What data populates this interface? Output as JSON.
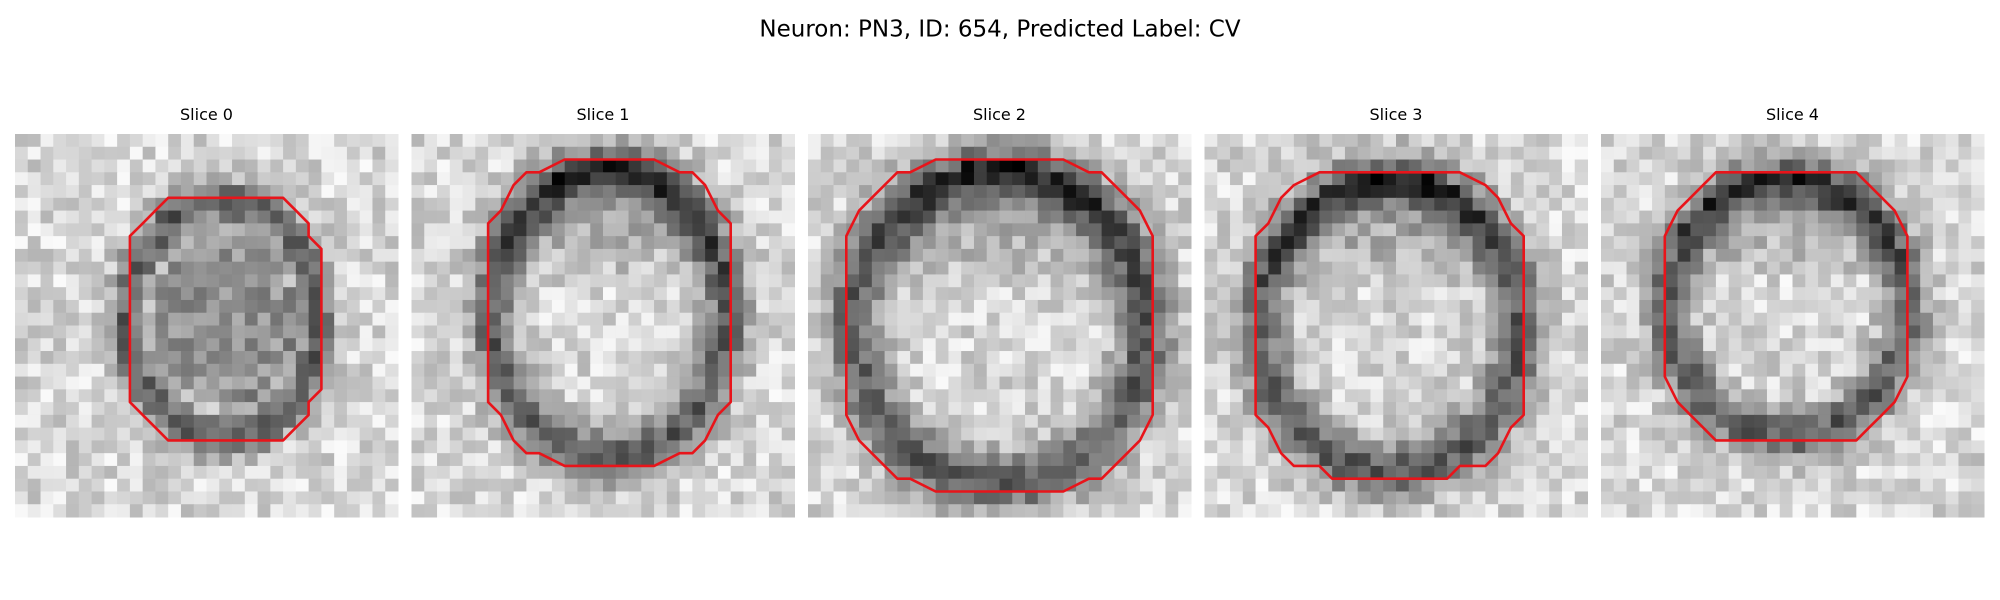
{
  "title": "Neuron: PN3, ID: 654, Predicted Label: CV",
  "panels": [
    {
      "title": "Slice 0"
    },
    {
      "title": "Slice 1"
    },
    {
      "title": "Slice 2"
    },
    {
      "title": "Slice 3"
    },
    {
      "title": "Slice 4"
    }
  ]
}
